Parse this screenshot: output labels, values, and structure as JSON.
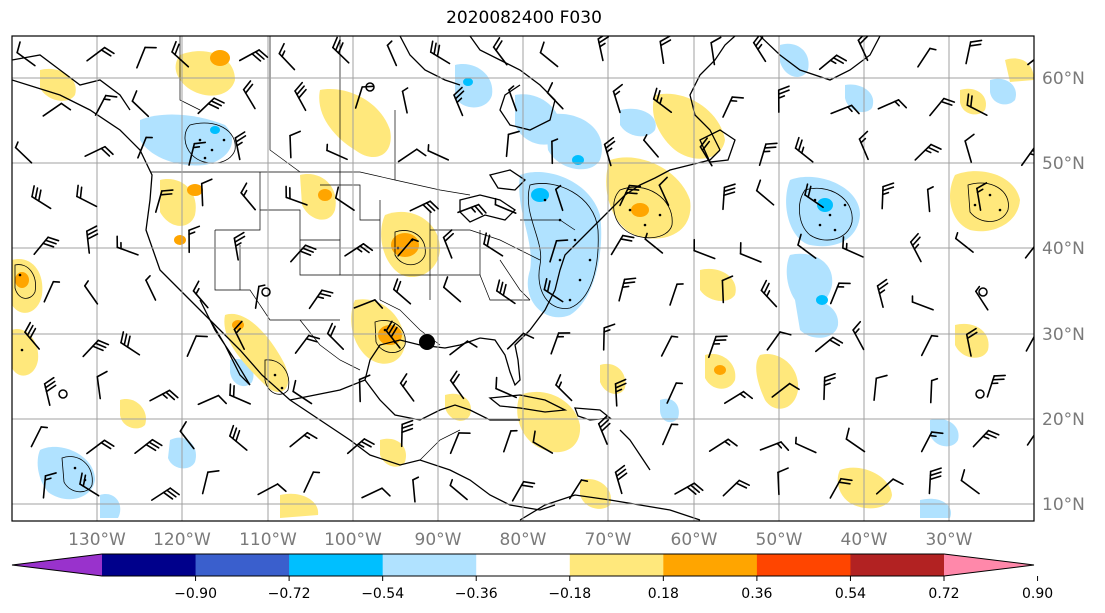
{
  "title": "2020082400 F030",
  "lon_labels": [
    "130°W",
    "120°W",
    "110°W",
    "100°W",
    "90°W",
    "80°W",
    "70°W",
    "60°W",
    "50°W",
    "40°W",
    "30°W"
  ],
  "lat_labels": [
    "60°N",
    "50°N",
    "40°N",
    "30°N",
    "20°N",
    "10°N"
  ],
  "colorbar": {
    "colors": [
      "#9932cc",
      "#00008b",
      "#3a5fcd",
      "#00bfff",
      "#b0e2ff",
      "#ffffff",
      "#ffe87c",
      "#ffa500",
      "#ff4500",
      "#b22222",
      "#ff88aa"
    ],
    "tick_labels": [
      "−0.90",
      "−0.72",
      "−0.54",
      "−0.36",
      "−0.18",
      "0.18",
      "0.36",
      "0.54",
      "0.72",
      "0.90"
    ]
  },
  "colors": {
    "frame": "#000000",
    "grid": "#a0a0a0",
    "coast": "#000000",
    "lightblue": "#b0e2ff",
    "midblue": "#00bfff",
    "yellow": "#ffe87c",
    "orange": "#ffa500"
  }
}
